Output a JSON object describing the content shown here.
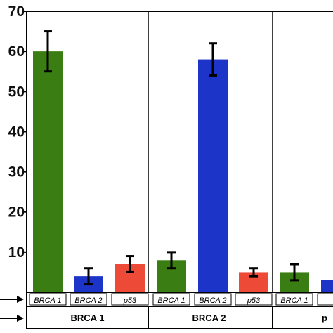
{
  "chart_data": {
    "type": "bar",
    "title": "",
    "xlabel": "",
    "ylabel": "",
    "ylim": [
      0,
      70
    ],
    "yticks": [
      10,
      20,
      30,
      40,
      50,
      60,
      70
    ],
    "grid": false,
    "groups": [
      {
        "label": "BRCA 1",
        "bars": [
          {
            "label": "BRCA 1",
            "value": 60,
            "error": 5,
            "color": "#3a7d12"
          },
          {
            "label": "BRCA 2",
            "value": 4,
            "error": 2,
            "color": "#1c34c8"
          },
          {
            "label": "p53",
            "value": 7,
            "error": 2,
            "color": "#ee4a38"
          }
        ]
      },
      {
        "label": "BRCA 2",
        "bars": [
          {
            "label": "BRCA 1",
            "value": 8,
            "error": 2,
            "color": "#3a7d12"
          },
          {
            "label": "BRCA 2",
            "value": 58,
            "error": 4,
            "color": "#1c34c8"
          },
          {
            "label": "p53",
            "value": 5,
            "error": 1,
            "color": "#ee4a38"
          }
        ]
      },
      {
        "label": "p",
        "bars": [
          {
            "label": "BRCA 1",
            "value": 5,
            "error": 2,
            "color": "#3a7d12"
          },
          {
            "label": "B",
            "value": 3,
            "error": 0,
            "color": "#1c34c8"
          }
        ]
      }
    ]
  }
}
